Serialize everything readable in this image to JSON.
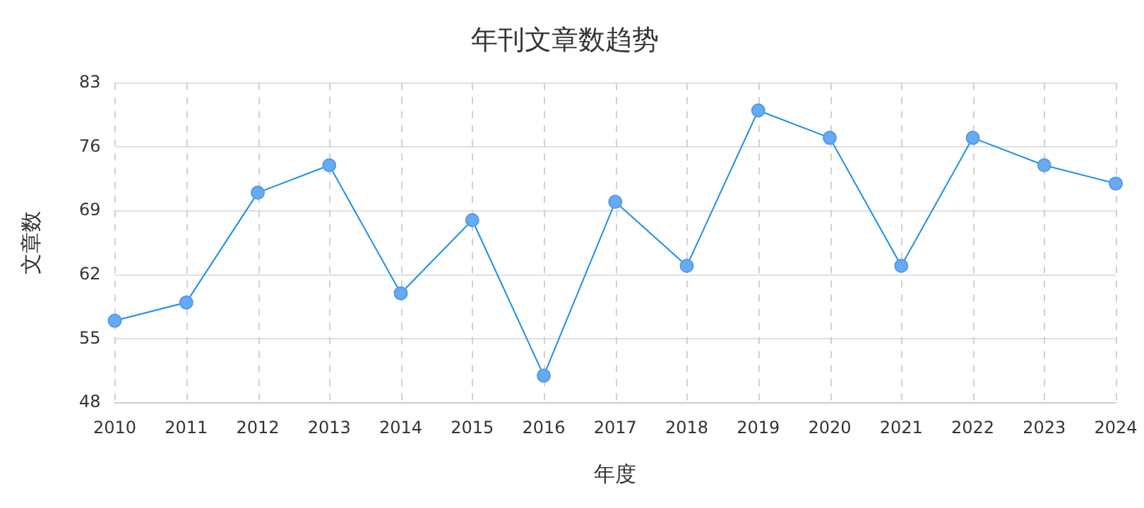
{
  "chart_data": {
    "type": "line",
    "title": "年刊文章数趋势",
    "xlabel": "年度",
    "ylabel": "文章数",
    "categories": [
      "2010",
      "2011",
      "2012",
      "2013",
      "2014",
      "2015",
      "2016",
      "2017",
      "2018",
      "2019",
      "2020",
      "2021",
      "2022",
      "2023",
      "2024"
    ],
    "series": [
      {
        "color": "#1a90e8",
        "values": [
          57,
          59,
          71,
          74,
          60,
          68,
          51,
          70,
          63,
          80,
          77,
          63,
          77,
          74,
          72
        ]
      }
    ],
    "ylim": [
      48,
      83
    ],
    "yticks": [
      48,
      55,
      62,
      69,
      76,
      83
    ],
    "grid": true,
    "marker": "circle",
    "line_style": "solid",
    "legend": false
  }
}
